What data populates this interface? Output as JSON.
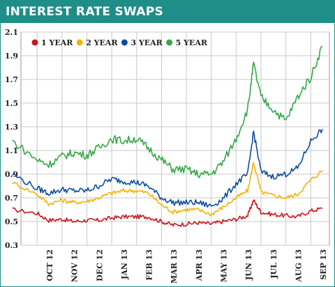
{
  "header": {
    "title": "INTEREST RATE SWAPS"
  },
  "chart_data": {
    "type": "line",
    "title": "INTEREST RATE SWAPS",
    "xlabel": "",
    "ylabel": "",
    "ylim": [
      0.3,
      2.1
    ],
    "y_ticks": [
      "0.3",
      "0.5",
      "0.7",
      "0.9",
      "1.1",
      "1.3",
      "1.5",
      "1.7",
      "1.9",
      "2.1"
    ],
    "x_tick_labels": [
      "OCT 12",
      "NOV 12",
      "DEC 12",
      "JAN 13",
      "FEB 13",
      "MAR 13",
      "APR 13",
      "MAY 13",
      "JUN 13",
      "JUL 13",
      "AUG 13",
      "SEP 13"
    ],
    "x": [
      "Sep 12",
      "Oct 1",
      "Oct 15",
      "Nov 1",
      "Nov 15",
      "Dec 1",
      "Dec 15",
      "Jan 1",
      "Jan 15",
      "Feb 1",
      "Feb 15",
      "Mar 1",
      "Mar 15",
      "Apr 1",
      "Apr 15",
      "May 1",
      "May 15",
      "Jun 1",
      "Jun 15",
      "Jun 22",
      "Jul 1",
      "Jul 15",
      "Aug 1",
      "Aug 15",
      "Sep 1",
      "Sep 15"
    ],
    "grid": true,
    "legend_position": "top-left",
    "series": [
      {
        "name": "1 YEAR",
        "color": "#c8161d",
        "values": [
          0.6,
          0.57,
          0.51,
          0.52,
          0.5,
          0.51,
          0.51,
          0.53,
          0.54,
          0.54,
          0.54,
          0.5,
          0.47,
          0.48,
          0.49,
          0.48,
          0.5,
          0.52,
          0.55,
          0.68,
          0.58,
          0.56,
          0.55,
          0.54,
          0.59,
          0.61
        ]
      },
      {
        "name": "2 YEAR",
        "color": "#f5b300",
        "values": [
          0.83,
          0.73,
          0.65,
          0.68,
          0.66,
          0.67,
          0.7,
          0.74,
          0.76,
          0.76,
          0.74,
          0.64,
          0.58,
          0.6,
          0.6,
          0.56,
          0.62,
          0.7,
          0.76,
          1.0,
          0.75,
          0.72,
          0.7,
          0.73,
          0.85,
          0.93
        ]
      },
      {
        "name": "3 YEAR",
        "color": "#0a4da0",
        "values": [
          0.9,
          0.78,
          0.74,
          0.77,
          0.76,
          0.76,
          0.8,
          0.86,
          0.84,
          0.83,
          0.8,
          0.7,
          0.66,
          0.66,
          0.66,
          0.63,
          0.69,
          0.82,
          0.9,
          1.26,
          0.92,
          0.88,
          0.9,
          0.95,
          1.18,
          1.28
        ]
      },
      {
        "name": "5 YEAR",
        "color": "#35a849",
        "values": [
          1.18,
          1.02,
          0.98,
          1.05,
          1.08,
          1.06,
          1.12,
          1.2,
          1.18,
          1.2,
          1.12,
          1.02,
          0.94,
          0.94,
          0.9,
          0.9,
          1.0,
          1.2,
          1.45,
          1.83,
          1.55,
          1.45,
          1.35,
          1.55,
          1.72,
          1.98
        ]
      }
    ]
  }
}
